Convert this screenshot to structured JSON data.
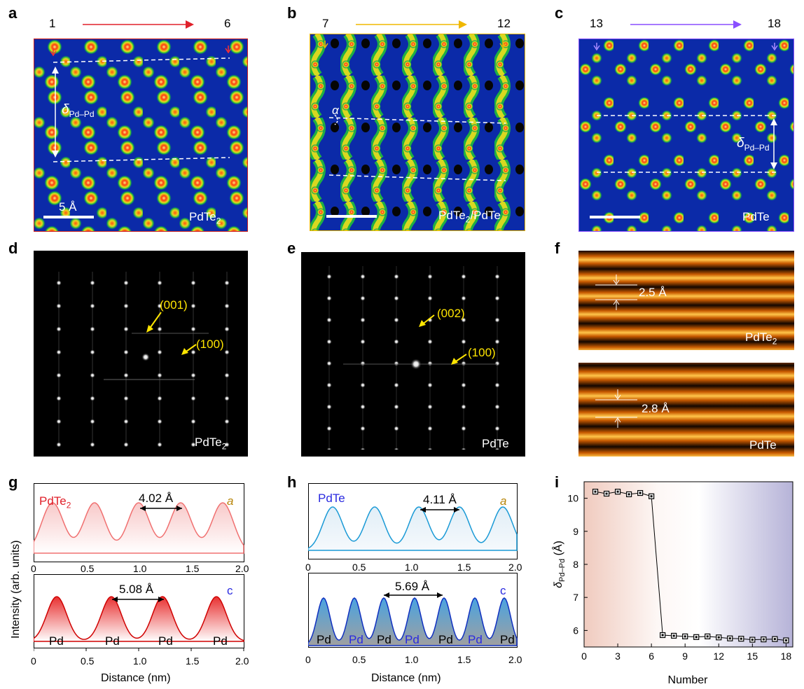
{
  "panels": {
    "a": {
      "letter": "a",
      "start": "1",
      "end": "6",
      "material_pre": "PdTe",
      "material_sub": "2",
      "scale": "5 Å",
      "delta_main": "δ",
      "delta_sub": "Pd–Pd"
    },
    "b": {
      "letter": "b",
      "start": "7",
      "end": "12",
      "material_pre": "PdTe",
      "material_sub": "2",
      "material_post": "/PdTe",
      "alpha": "α"
    },
    "c": {
      "letter": "c",
      "start": "13",
      "end": "18",
      "material": "PdTe",
      "delta_main": "δ",
      "delta_sub": "Pd–Pd"
    },
    "d": {
      "letter": "d",
      "spot1": "(001)",
      "spot2": "(100)",
      "material_pre": "PdTe",
      "material_sub": "2"
    },
    "e": {
      "letter": "e",
      "spot1": "(002)",
      "spot2": "(100)",
      "material": "PdTe"
    },
    "f": {
      "letter": "f",
      "top_spacing": "2.5 Å",
      "top_pre": "PdTe",
      "top_sub": "2",
      "bottom_spacing": "2.8 Å",
      "bottom_material": "PdTe"
    },
    "g": {
      "letter": "g",
      "material_pre": "PdTe",
      "material_sub": "2",
      "a_spacing": "4.02 Å",
      "a_label": "a",
      "c_spacing": "5.08 Å",
      "c_label": "c",
      "atom": "Pd"
    },
    "h": {
      "letter": "h",
      "material": "PdTe",
      "a_spacing": "4.11 Å",
      "a_label": "a",
      "c_spacing": "5.69 Å",
      "c_label": "c",
      "atom": "Pd"
    },
    "i": {
      "letter": "i"
    }
  },
  "shared": {
    "ylabel_gh": "Intensity (arb. units)",
    "xlabel_gh": "Distance (nm)",
    "xticks_gh": [
      "0",
      "0.5",
      "1.0",
      "1.5",
      "2.0"
    ]
  },
  "chart_data": {
    "type": "line",
    "title": "",
    "xlabel": "Number",
    "ylabel": "δPd–Pd (Å)",
    "x": [
      1,
      2,
      3,
      4,
      5,
      6,
      7,
      8,
      9,
      10,
      11,
      12,
      13,
      14,
      15,
      16,
      17,
      18
    ],
    "values": [
      10.2,
      10.14,
      10.2,
      10.12,
      10.16,
      10.06,
      5.86,
      5.84,
      5.82,
      5.8,
      5.82,
      5.79,
      5.76,
      5.75,
      5.72,
      5.73,
      5.74,
      5.7
    ],
    "xlim": [
      0,
      18.6
    ],
    "ylim": [
      5.5,
      10.5
    ],
    "xticks": [
      "0",
      "3",
      "6",
      "9",
      "12",
      "15",
      "18"
    ],
    "yticks": [
      "6",
      "7",
      "8",
      "9",
      "10"
    ],
    "grid": false
  },
  "colors": {
    "red": "#e0202a",
    "blue": "#2a2ae0",
    "gold": "#b8860b",
    "purple": "#8a4fff",
    "yellow": "#ffe500"
  }
}
